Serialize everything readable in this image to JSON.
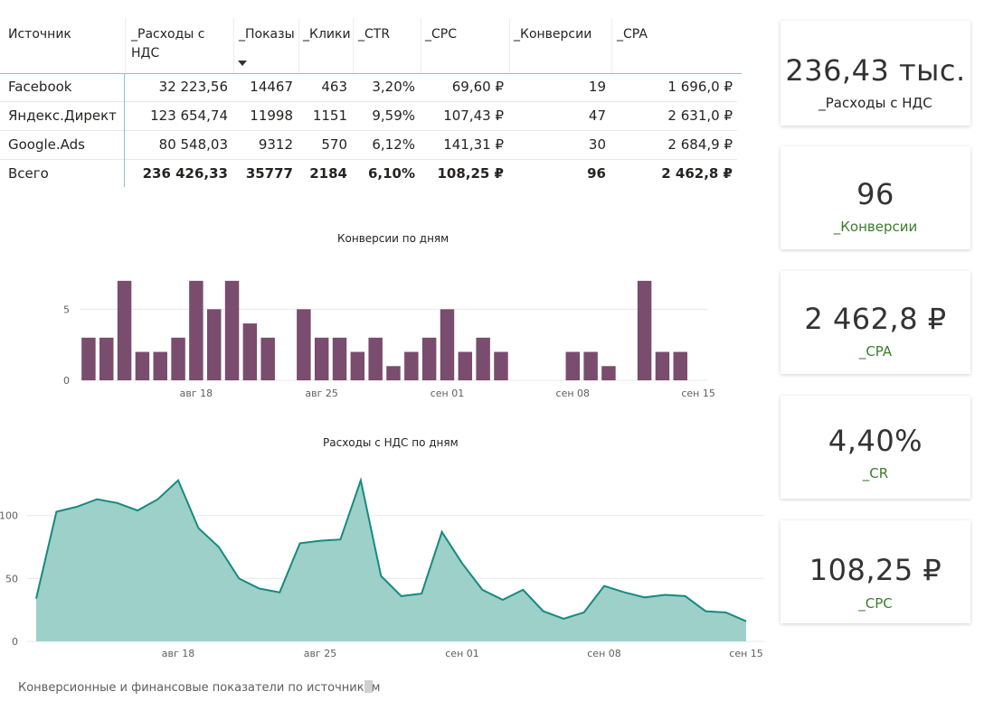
{
  "table": {
    "columns": [
      "Источник",
      "_Расходы с НДС",
      "_Показы",
      "_Клики",
      "_CTR",
      "_CPC",
      "_Конверсии",
      "_CPA"
    ],
    "rows": [
      [
        "Facebook",
        "32 223,56",
        "14467",
        "463",
        "3,20%",
        "69,60 ₽",
        "19",
        "1 696,0 ₽"
      ],
      [
        "Яндекс.Директ",
        "123 654,74",
        "11998",
        "1151",
        "9,59%",
        "107,43 ₽",
        "47",
        "2 631,0 ₽"
      ],
      [
        "Google.Ads",
        "80 548,03",
        "9312",
        "570",
        "6,12%",
        "141,31 ₽",
        "30",
        "2 684,9 ₽"
      ]
    ],
    "total": [
      "Всего",
      "236 426,33",
      "35777",
      "2184",
      "6,10%",
      "108,25 ₽",
      "96",
      "2 462,8 ₽"
    ]
  },
  "kpis": [
    {
      "value": "236,43 тыс.",
      "label": "_Расходы с НДС",
      "label_color": "#252423"
    },
    {
      "value": "96",
      "label": "_Конверсии",
      "label_color": "#3a7d2c"
    },
    {
      "value": "2 462,8 ₽",
      "label": "_CPA",
      "label_color": "#3a7d2c"
    },
    {
      "value": "4,40%",
      "label": "_CR",
      "label_color": "#3a7d2c"
    },
    {
      "value": "108,25 ₽",
      "label": "_CPC",
      "label_color": "#3a7d2c"
    }
  ],
  "colors": {
    "bar": "#7a4c6e",
    "area_fill": "#9dd0c8",
    "area_line": "#168a80",
    "grid": "#e9e9e9",
    "axis_text": "#605e5c"
  },
  "chart_data": [
    {
      "type": "bar",
      "title": "Конверсии по дням",
      "x": [
        "авг 12",
        "авг 13",
        "авг 14",
        "авг 15",
        "авг 16",
        "авг 17",
        "авг 18",
        "авг 19",
        "авг 20",
        "авг 21",
        "авг 22",
        "авг 23",
        "авг 24",
        "авг 25",
        "авг 26",
        "авг 27",
        "авг 28",
        "авг 29",
        "авг 30",
        "авг 31",
        "сен 01",
        "сен 02",
        "сен 03",
        "сен 04",
        "сен 05",
        "сен 06",
        "сен 07",
        "сен 08",
        "сен 09",
        "сен 10",
        "сен 11",
        "сен 12",
        "сен 13",
        "сен 14",
        "сен 15"
      ],
      "values": [
        3,
        3,
        7,
        2,
        2,
        3,
        7,
        5,
        7,
        4,
        3,
        0,
        5,
        3,
        3,
        2,
        3,
        1,
        2,
        3,
        5,
        2,
        3,
        2,
        0,
        0,
        0,
        2,
        2,
        1,
        0,
        7,
        2,
        2,
        0
      ],
      "x_ticks": [
        "авг 18",
        "авг 25",
        "сен 01",
        "сен 08",
        "сен 15"
      ],
      "y_ticks": [
        0,
        5
      ],
      "ylim": [
        0,
        7.5
      ],
      "grid": true
    },
    {
      "type": "area",
      "title": "Расходы с НДС по дням",
      "x": [
        "авг 11",
        "авг 12",
        "авг 13",
        "авг 14",
        "авг 15",
        "авг 16",
        "авг 17",
        "авг 18",
        "авг 19",
        "авг 20",
        "авг 21",
        "авг 22",
        "авг 23",
        "авг 24",
        "авг 25",
        "авг 26",
        "авг 27",
        "авг 28",
        "авг 29",
        "авг 30",
        "авг 31",
        "сен 01",
        "сен 02",
        "сен 03",
        "сен 04",
        "сен 05",
        "сен 06",
        "сен 07",
        "сен 08",
        "сен 09",
        "сен 10",
        "сен 11",
        "сен 12",
        "сен 13",
        "сен 14",
        "сен 15",
        "сен 16"
      ],
      "values": [
        34,
        103,
        107,
        113,
        110,
        104,
        113,
        128,
        90,
        75,
        50,
        42,
        39,
        78,
        80,
        81,
        128,
        52,
        36,
        38,
        87,
        62,
        41,
        33,
        41,
        24,
        18,
        23,
        44,
        39,
        35,
        37,
        36,
        24,
        23,
        16,
        null
      ],
      "x_ticks": [
        "авг 18",
        "авг 25",
        "сен 01",
        "сен 08",
        "сен 15"
      ],
      "y_ticks": [
        0,
        50,
        100
      ],
      "ylim": [
        0,
        140
      ],
      "grid": true
    }
  ],
  "footer": "Конверсионные и финансовые показатели по источникам"
}
